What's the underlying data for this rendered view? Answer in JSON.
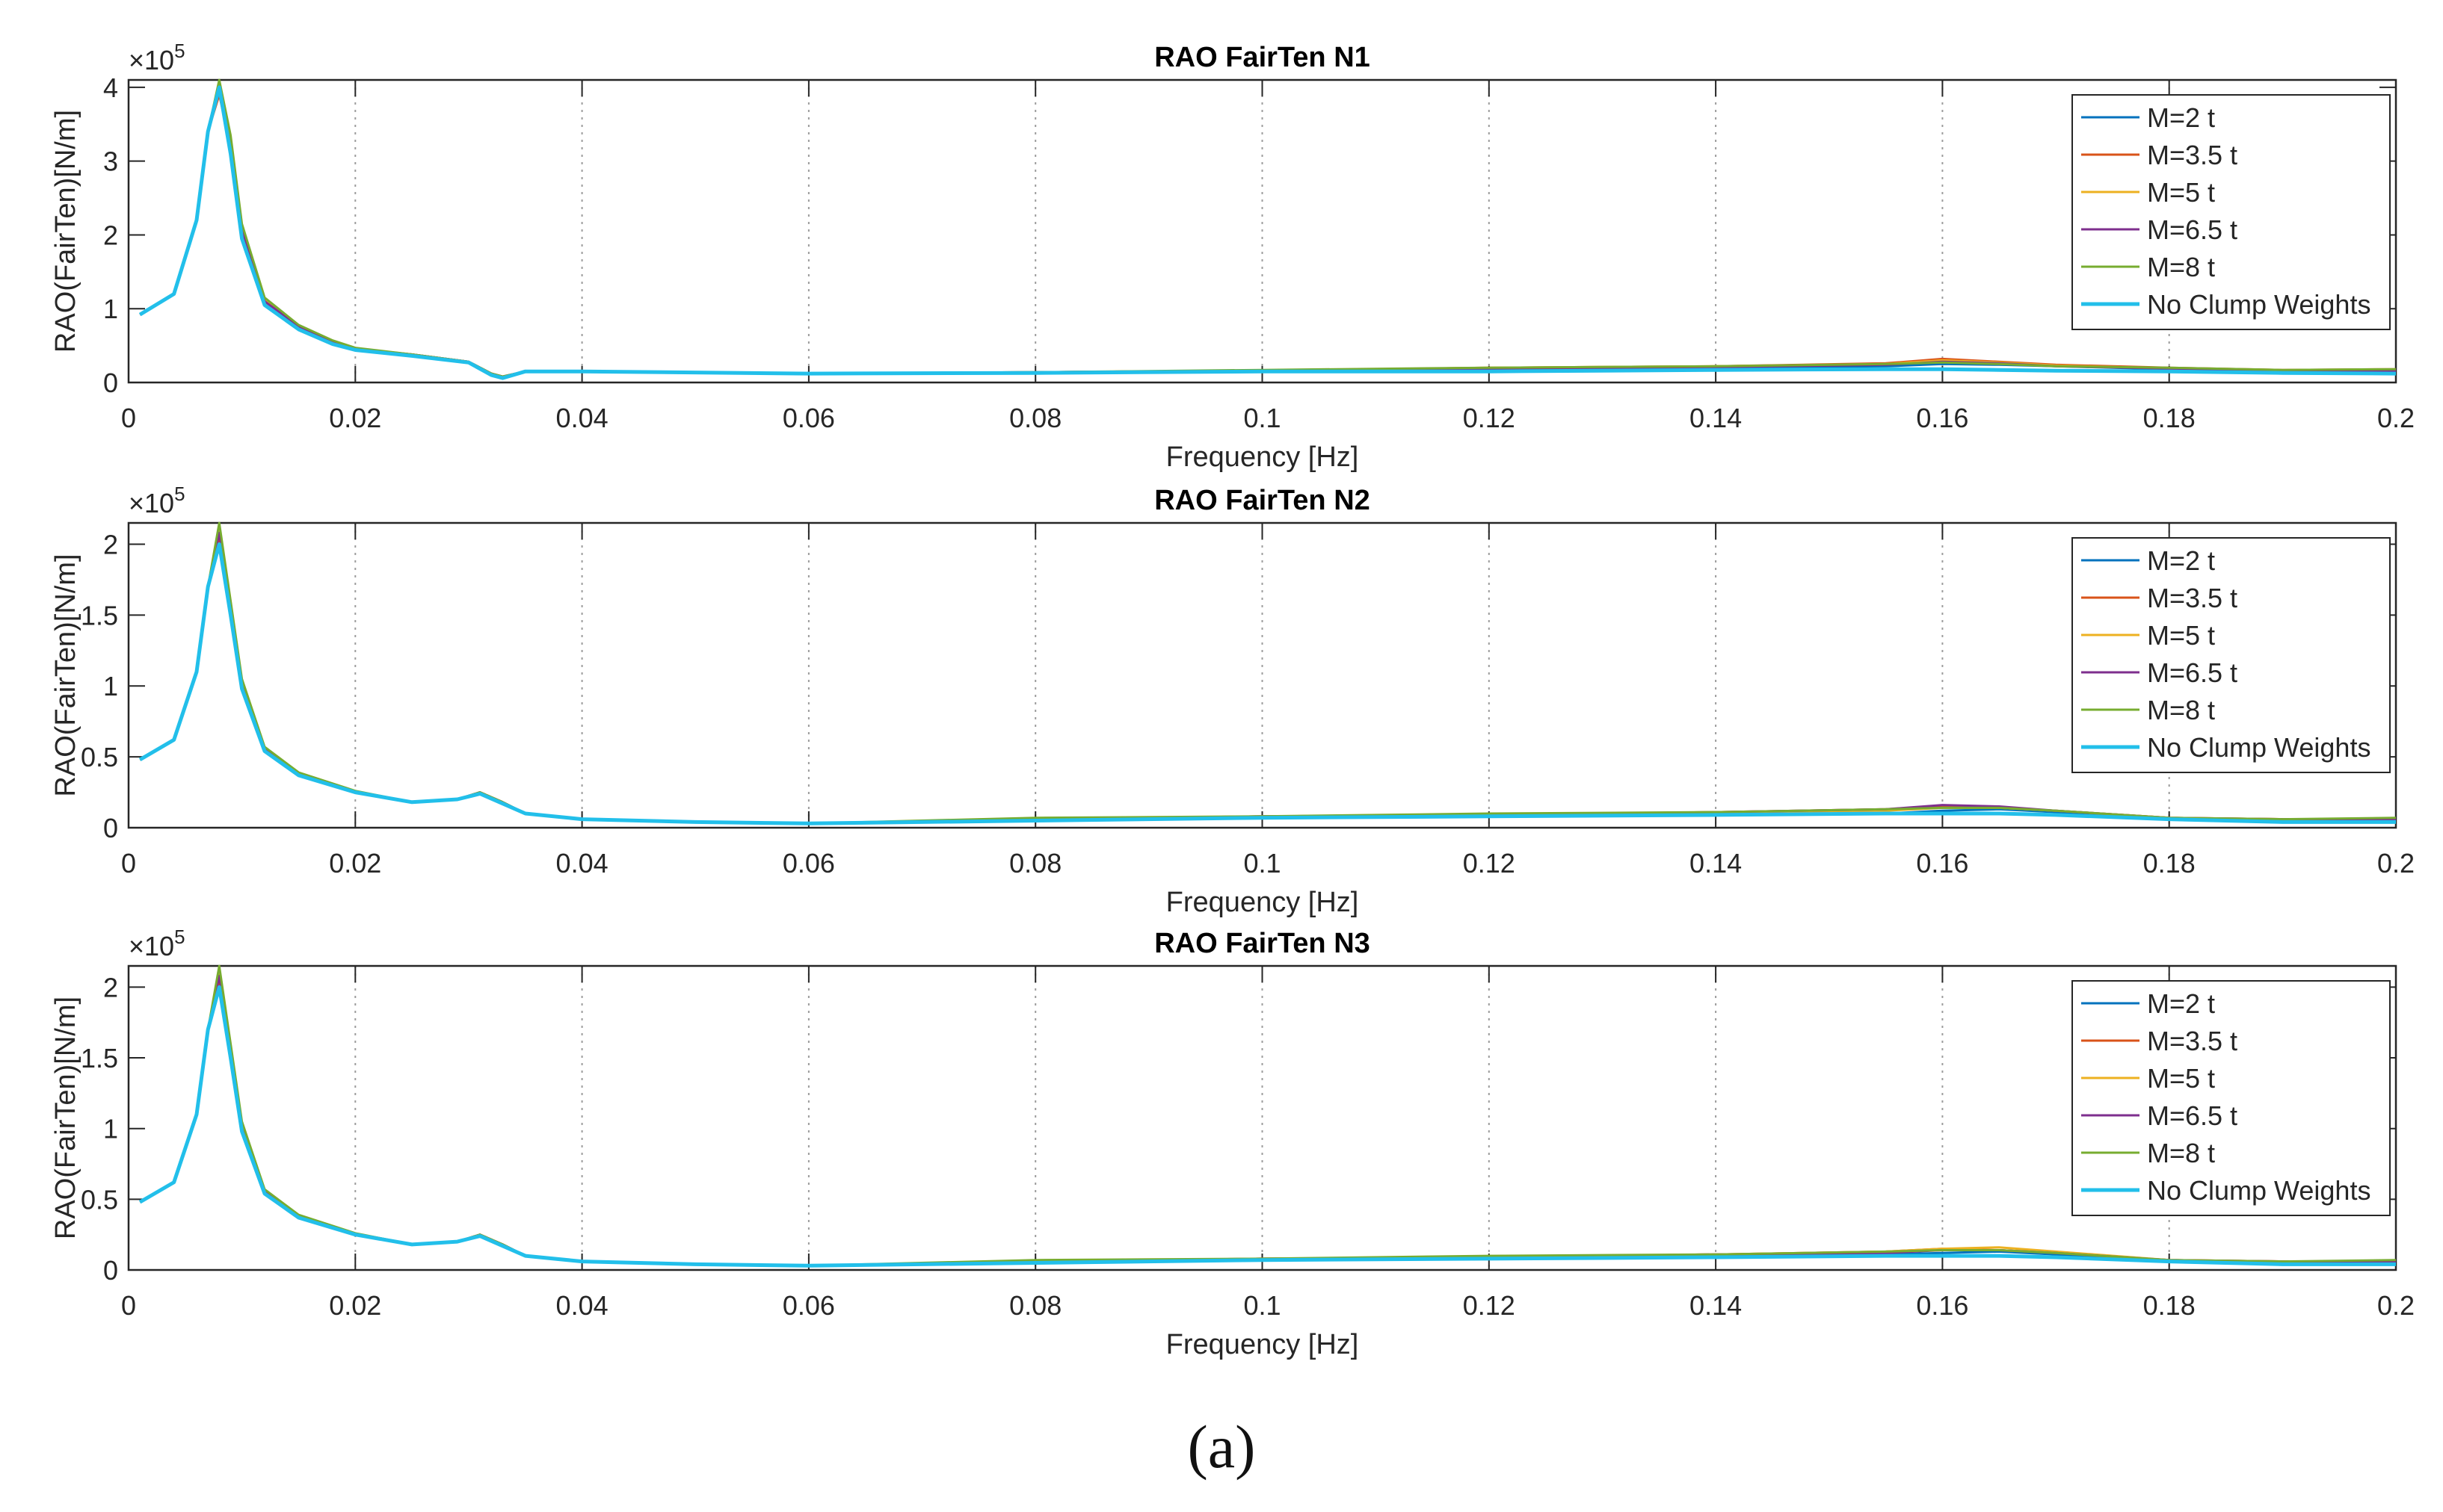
{
  "figure_caption": "(a)",
  "colors": {
    "series": [
      "#0072BD",
      "#D95319",
      "#EDB120",
      "#7E2F8E",
      "#77AC30",
      "#22BFEA"
    ],
    "axis": "#262626",
    "grid": "#262626"
  },
  "chart_data": [
    {
      "type": "line",
      "title": "RAO FairTen N1",
      "xlabel": "Frequency [Hz]",
      "ylabel": "RAO(FairTen)[N/m]",
      "y_exponent_label": "×10",
      "y_exponent": "5",
      "xlim": [
        0,
        0.2
      ],
      "ylim": [
        0,
        4.1
      ],
      "grid": "x-only",
      "legend_position": "top-right",
      "xticks": [
        0,
        0.02,
        0.04,
        0.06,
        0.08,
        0.1,
        0.12,
        0.14,
        0.16,
        0.18,
        0.2
      ],
      "xtick_labels": [
        "0",
        "0.02",
        "0.04",
        "0.06",
        "0.08",
        "0.1",
        "0.12",
        "0.14",
        "0.16",
        "0.18",
        "0.2"
      ],
      "yticks": [
        0,
        1,
        2,
        3,
        4
      ],
      "ytick_labels": [
        "0",
        "1",
        "2",
        "3",
        "4"
      ],
      "x": [
        0.001,
        0.004,
        0.006,
        0.007,
        0.008,
        0.009,
        0.01,
        0.012,
        0.015,
        0.018,
        0.02,
        0.025,
        0.03,
        0.032,
        0.033,
        0.035,
        0.04,
        0.06,
        0.08,
        0.1,
        0.12,
        0.14,
        0.155,
        0.16,
        0.165,
        0.17,
        0.18,
        0.19,
        0.2
      ],
      "series": [
        {
          "name": "M=2 t",
          "values": [
            0.92,
            1.2,
            2.2,
            3.4,
            4.0,
            3.2,
            2.0,
            1.1,
            0.75,
            0.55,
            0.45,
            0.38,
            0.28,
            0.12,
            0.08,
            0.15,
            0.15,
            0.12,
            0.13,
            0.15,
            0.18,
            0.2,
            0.22,
            0.25,
            0.24,
            0.22,
            0.18,
            0.15,
            0.15
          ]
        },
        {
          "name": "M=3.5 t",
          "values": [
            0.92,
            1.2,
            2.2,
            3.4,
            3.9,
            3.2,
            2.0,
            1.1,
            0.76,
            0.56,
            0.46,
            0.38,
            0.28,
            0.12,
            0.08,
            0.15,
            0.15,
            0.12,
            0.14,
            0.16,
            0.2,
            0.22,
            0.26,
            0.32,
            0.28,
            0.24,
            0.2,
            0.17,
            0.18
          ]
        },
        {
          "name": "M=5 t",
          "values": [
            0.92,
            1.2,
            2.2,
            3.4,
            4.05,
            3.3,
            2.1,
            1.12,
            0.77,
            0.56,
            0.46,
            0.38,
            0.28,
            0.12,
            0.08,
            0.15,
            0.15,
            0.12,
            0.14,
            0.16,
            0.2,
            0.22,
            0.25,
            0.3,
            0.27,
            0.23,
            0.19,
            0.16,
            0.17
          ]
        },
        {
          "name": "M=6.5 t",
          "values": [
            0.92,
            1.2,
            2.2,
            3.4,
            3.95,
            3.2,
            2.05,
            1.1,
            0.76,
            0.56,
            0.46,
            0.38,
            0.28,
            0.12,
            0.08,
            0.15,
            0.15,
            0.12,
            0.14,
            0.16,
            0.19,
            0.21,
            0.24,
            0.28,
            0.26,
            0.22,
            0.19,
            0.16,
            0.16
          ]
        },
        {
          "name": "M=8 t",
          "values": [
            0.92,
            1.2,
            2.2,
            3.4,
            4.1,
            3.35,
            2.15,
            1.15,
            0.78,
            0.57,
            0.47,
            0.38,
            0.28,
            0.12,
            0.08,
            0.15,
            0.15,
            0.12,
            0.14,
            0.17,
            0.2,
            0.22,
            0.25,
            0.27,
            0.25,
            0.22,
            0.2,
            0.17,
            0.18
          ]
        },
        {
          "name": "No Clump Weights",
          "values": [
            0.92,
            1.2,
            2.2,
            3.4,
            4.0,
            3.1,
            1.95,
            1.05,
            0.72,
            0.52,
            0.44,
            0.36,
            0.27,
            0.1,
            0.06,
            0.15,
            0.15,
            0.12,
            0.13,
            0.15,
            0.15,
            0.17,
            0.18,
            0.18,
            0.17,
            0.16,
            0.15,
            0.13,
            0.12
          ]
        }
      ]
    },
    {
      "type": "line",
      "title": "RAO FairTen N2",
      "xlabel": "Frequency [Hz]",
      "ylabel": "RAO(FairTen)[N/m]",
      "y_exponent_label": "×10",
      "y_exponent": "5",
      "xlim": [
        0,
        0.2
      ],
      "ylim": [
        0,
        2.15
      ],
      "grid": "x-only",
      "legend_position": "top-right",
      "xticks": [
        0,
        0.02,
        0.04,
        0.06,
        0.08,
        0.1,
        0.12,
        0.14,
        0.16,
        0.18,
        0.2
      ],
      "xtick_labels": [
        "0",
        "0.02",
        "0.04",
        "0.06",
        "0.08",
        "0.1",
        "0.12",
        "0.14",
        "0.16",
        "0.18",
        "0.2"
      ],
      "yticks": [
        0,
        0.5,
        1,
        1.5,
        2
      ],
      "ytick_labels": [
        "0",
        "0.5",
        "1",
        "1.5",
        "2"
      ],
      "x": [
        0.001,
        0.004,
        0.006,
        0.007,
        0.008,
        0.009,
        0.01,
        0.012,
        0.015,
        0.02,
        0.025,
        0.029,
        0.031,
        0.033,
        0.035,
        0.04,
        0.05,
        0.06,
        0.08,
        0.1,
        0.12,
        0.14,
        0.155,
        0.16,
        0.165,
        0.17,
        0.18,
        0.19,
        0.2
      ],
      "series": [
        {
          "name": "M=2 t",
          "values": [
            0.48,
            0.62,
            1.1,
            1.7,
            2.1,
            1.55,
            1.0,
            0.55,
            0.38,
            0.25,
            0.18,
            0.2,
            0.25,
            0.18,
            0.1,
            0.06,
            0.04,
            0.03,
            0.06,
            0.07,
            0.08,
            0.1,
            0.1,
            0.12,
            0.13,
            0.11,
            0.06,
            0.05,
            0.05
          ]
        },
        {
          "name": "M=3.5 t",
          "values": [
            0.48,
            0.62,
            1.1,
            1.7,
            2.05,
            1.55,
            1.02,
            0.56,
            0.38,
            0.25,
            0.18,
            0.2,
            0.25,
            0.18,
            0.1,
            0.06,
            0.04,
            0.03,
            0.06,
            0.08,
            0.09,
            0.11,
            0.13,
            0.15,
            0.14,
            0.12,
            0.07,
            0.06,
            0.06
          ]
        },
        {
          "name": "M=5 t",
          "values": [
            0.48,
            0.62,
            1.1,
            1.7,
            2.12,
            1.58,
            1.03,
            0.56,
            0.38,
            0.25,
            0.18,
            0.2,
            0.25,
            0.18,
            0.1,
            0.06,
            0.04,
            0.03,
            0.06,
            0.08,
            0.09,
            0.11,
            0.12,
            0.14,
            0.14,
            0.12,
            0.07,
            0.06,
            0.06
          ]
        },
        {
          "name": "M=6.5 t",
          "values": [
            0.48,
            0.62,
            1.1,
            1.7,
            2.08,
            1.56,
            1.02,
            0.56,
            0.38,
            0.25,
            0.18,
            0.2,
            0.25,
            0.18,
            0.1,
            0.06,
            0.04,
            0.03,
            0.06,
            0.08,
            0.09,
            0.11,
            0.13,
            0.16,
            0.15,
            0.12,
            0.07,
            0.06,
            0.06
          ]
        },
        {
          "name": "M=8 t",
          "values": [
            0.48,
            0.62,
            1.1,
            1.7,
            2.15,
            1.6,
            1.05,
            0.57,
            0.39,
            0.26,
            0.18,
            0.2,
            0.25,
            0.18,
            0.1,
            0.06,
            0.04,
            0.03,
            0.07,
            0.08,
            0.1,
            0.11,
            0.13,
            0.14,
            0.14,
            0.12,
            0.07,
            0.06,
            0.07
          ]
        },
        {
          "name": "No Clump Weights",
          "values": [
            0.48,
            0.62,
            1.1,
            1.7,
            2.0,
            1.5,
            0.98,
            0.54,
            0.37,
            0.25,
            0.18,
            0.2,
            0.24,
            0.17,
            0.1,
            0.06,
            0.04,
            0.03,
            0.05,
            0.07,
            0.08,
            0.09,
            0.1,
            0.1,
            0.1,
            0.09,
            0.06,
            0.04,
            0.04
          ]
        }
      ]
    },
    {
      "type": "line",
      "title": "RAO FairTen N3",
      "xlabel": "Frequency [Hz]",
      "ylabel": "RAO(FairTen)[N/m]",
      "y_exponent_label": "×10",
      "y_exponent": "5",
      "xlim": [
        0,
        0.2
      ],
      "ylim": [
        0,
        2.15
      ],
      "grid": "x-only",
      "legend_position": "top-right",
      "xticks": [
        0,
        0.02,
        0.04,
        0.06,
        0.08,
        0.1,
        0.12,
        0.14,
        0.16,
        0.18,
        0.2
      ],
      "xtick_labels": [
        "0",
        "0.02",
        "0.04",
        "0.06",
        "0.08",
        "0.1",
        "0.12",
        "0.14",
        "0.16",
        "0.18",
        "0.2"
      ],
      "yticks": [
        0,
        0.5,
        1,
        1.5,
        2
      ],
      "ytick_labels": [
        "0",
        "0.5",
        "1",
        "1.5",
        "2"
      ],
      "x": [
        0.001,
        0.004,
        0.006,
        0.007,
        0.008,
        0.009,
        0.01,
        0.012,
        0.015,
        0.02,
        0.025,
        0.029,
        0.031,
        0.033,
        0.035,
        0.04,
        0.05,
        0.06,
        0.08,
        0.1,
        0.12,
        0.14,
        0.155,
        0.16,
        0.165,
        0.17,
        0.18,
        0.19,
        0.2
      ],
      "series": [
        {
          "name": "M=2 t",
          "values": [
            0.48,
            0.62,
            1.1,
            1.7,
            2.1,
            1.55,
            1.0,
            0.55,
            0.38,
            0.25,
            0.18,
            0.2,
            0.25,
            0.18,
            0.1,
            0.06,
            0.04,
            0.03,
            0.06,
            0.07,
            0.08,
            0.1,
            0.11,
            0.12,
            0.13,
            0.11,
            0.06,
            0.05,
            0.05
          ]
        },
        {
          "name": "M=3.5 t",
          "values": [
            0.48,
            0.62,
            1.1,
            1.7,
            2.05,
            1.55,
            1.02,
            0.56,
            0.38,
            0.25,
            0.18,
            0.2,
            0.25,
            0.18,
            0.1,
            0.06,
            0.04,
            0.03,
            0.06,
            0.08,
            0.09,
            0.11,
            0.13,
            0.15,
            0.14,
            0.12,
            0.07,
            0.06,
            0.06
          ]
        },
        {
          "name": "M=5 t",
          "values": [
            0.48,
            0.62,
            1.1,
            1.7,
            2.12,
            1.58,
            1.03,
            0.56,
            0.38,
            0.25,
            0.18,
            0.2,
            0.25,
            0.18,
            0.1,
            0.06,
            0.04,
            0.03,
            0.06,
            0.08,
            0.09,
            0.11,
            0.13,
            0.15,
            0.16,
            0.13,
            0.07,
            0.06,
            0.06
          ]
        },
        {
          "name": "M=6.5 t",
          "values": [
            0.48,
            0.62,
            1.1,
            1.7,
            2.08,
            1.56,
            1.02,
            0.56,
            0.38,
            0.25,
            0.18,
            0.2,
            0.25,
            0.18,
            0.1,
            0.06,
            0.04,
            0.03,
            0.06,
            0.08,
            0.09,
            0.11,
            0.12,
            0.14,
            0.14,
            0.12,
            0.07,
            0.06,
            0.06
          ]
        },
        {
          "name": "M=8 t",
          "values": [
            0.48,
            0.62,
            1.1,
            1.7,
            2.15,
            1.6,
            1.05,
            0.57,
            0.39,
            0.26,
            0.18,
            0.2,
            0.25,
            0.18,
            0.1,
            0.06,
            0.04,
            0.03,
            0.07,
            0.08,
            0.1,
            0.11,
            0.13,
            0.14,
            0.14,
            0.12,
            0.07,
            0.06,
            0.07
          ]
        },
        {
          "name": "No Clump Weights",
          "values": [
            0.48,
            0.62,
            1.1,
            1.7,
            2.0,
            1.5,
            0.98,
            0.54,
            0.37,
            0.25,
            0.18,
            0.2,
            0.24,
            0.17,
            0.1,
            0.06,
            0.04,
            0.03,
            0.05,
            0.07,
            0.08,
            0.09,
            0.1,
            0.1,
            0.1,
            0.09,
            0.06,
            0.04,
            0.04
          ]
        }
      ]
    }
  ]
}
